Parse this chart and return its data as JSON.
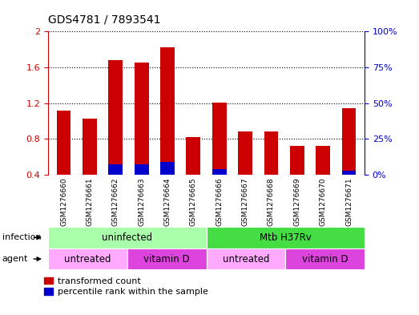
{
  "title": "GDS4781 / 7893541",
  "samples": [
    "GSM1276660",
    "GSM1276661",
    "GSM1276662",
    "GSM1276663",
    "GSM1276664",
    "GSM1276665",
    "GSM1276666",
    "GSM1276667",
    "GSM1276668",
    "GSM1276669",
    "GSM1276670",
    "GSM1276671"
  ],
  "red_values": [
    1.12,
    1.03,
    1.68,
    1.65,
    1.82,
    0.82,
    1.21,
    0.88,
    0.88,
    0.72,
    0.72,
    1.14
  ],
  "blue_values": [
    0.0,
    0.0,
    0.12,
    0.12,
    0.14,
    0.0,
    0.06,
    0.0,
    0.0,
    0.0,
    0.0,
    0.05
  ],
  "ymin": 0.4,
  "ymax": 2.0,
  "yticks": [
    0.4,
    0.8,
    1.2,
    1.6,
    2.0
  ],
  "ytick_labels": [
    "0.4",
    "0.8",
    "1.2",
    "1.6",
    "2"
  ],
  "right_ytick_labels": [
    "0%",
    "25%",
    "50%",
    "75%",
    "100%"
  ],
  "bar_color_red": "#cc0000",
  "bar_color_blue": "#0000cc",
  "infection_row": [
    {
      "label": "uninfected",
      "start": 0,
      "end": 5,
      "color": "#aaffaa"
    },
    {
      "label": "Mtb H37Rv",
      "start": 6,
      "end": 11,
      "color": "#44dd44"
    }
  ],
  "agent_row": [
    {
      "label": "untreated",
      "start": 0,
      "end": 2,
      "color": "#ffaaff"
    },
    {
      "label": "vitamin D",
      "start": 3,
      "end": 5,
      "color": "#dd44dd"
    },
    {
      "label": "untreated",
      "start": 6,
      "end": 8,
      "color": "#ffaaff"
    },
    {
      "label": "vitamin D",
      "start": 9,
      "end": 11,
      "color": "#dd44dd"
    }
  ],
  "legend_red_label": "transformed count",
  "legend_blue_label": "percentile rank within the sample",
  "infection_label": "infection",
  "agent_label": "agent",
  "bar_color_right": "#0000cc",
  "tick_color_left": "#cc0000",
  "tick_color_right": "#0000cc",
  "xticklabel_bg": "#cccccc"
}
